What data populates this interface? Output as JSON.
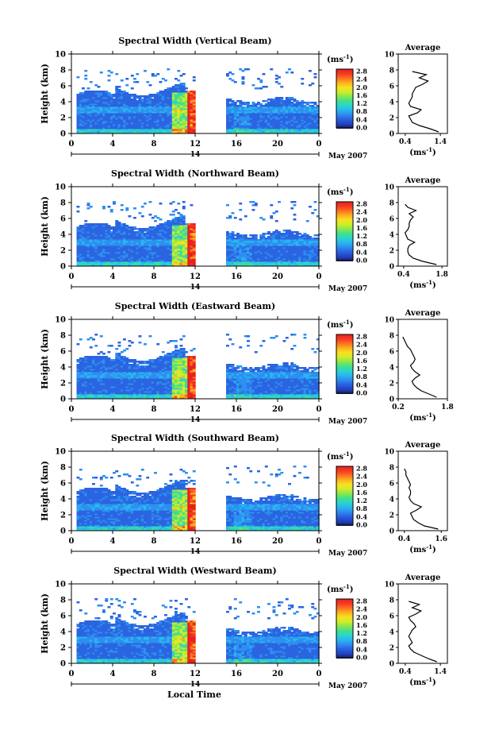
{
  "figure": {
    "xlabel_bottom": "Local Time",
    "date_label": "May 2007",
    "day_label": "14"
  },
  "colorbar": {
    "unit": "(ms",
    "unit_sup": "-1",
    "unit_close": ")",
    "ticks": [
      "2.8",
      "2.4",
      "2.0",
      "1.6",
      "1.2",
      "0.8",
      "0.4",
      "0.0"
    ],
    "colors": [
      "#1f2a8a",
      "#2244cc",
      "#2b64e0",
      "#2d8ff0",
      "#28b8f0",
      "#2ad6c8",
      "#44e08a",
      "#8ce84a",
      "#d0ec2a",
      "#f8e020",
      "#fcb020",
      "#fc7020",
      "#f43a22",
      "#e82020"
    ]
  },
  "chart_data": [
    {
      "type": "heatmap",
      "title": "Spectral Width (Vertical Beam)",
      "ylabel": "Height (km)",
      "xticks": [
        "0",
        "4",
        "8",
        "12",
        "16",
        "20",
        "0"
      ],
      "yticks": [
        "0",
        "2",
        "4",
        "6",
        "8",
        "10"
      ],
      "xlim": [
        0,
        24
      ],
      "ylim": [
        0,
        10
      ],
      "data_gap_hours": [
        12,
        14.8
      ],
      "profile": {
        "title": "Average",
        "xlabel": "(ms",
        "xlabel_sup": "-1",
        "xlabel_close": ")",
        "xticks": [
          "0.4",
          "1.4"
        ],
        "xlim": [
          0.2,
          1.6
        ],
        "ylim": [
          0,
          10
        ],
        "heights": [
          0.2,
          0.6,
          1.0,
          1.4,
          1.8,
          2.2,
          2.6,
          3.0,
          3.4,
          3.8,
          4.2,
          4.6,
          5.0,
          5.4,
          5.8,
          6.2,
          6.6,
          7.0,
          7.4,
          7.8
        ],
        "values": [
          1.35,
          1.1,
          0.8,
          0.6,
          0.55,
          0.5,
          0.75,
          0.85,
          0.55,
          0.5,
          0.55,
          0.6,
          0.6,
          0.65,
          0.7,
          0.9,
          1.05,
          0.8,
          1.0,
          0.6
        ]
      }
    },
    {
      "type": "heatmap",
      "title": "Spectral Width (Northward Beam)",
      "ylabel": "Height (km)",
      "xticks": [
        "0",
        "4",
        "8",
        "12",
        "16",
        "20",
        "0"
      ],
      "yticks": [
        "0",
        "2",
        "4",
        "6",
        "8",
        "10"
      ],
      "xlim": [
        0,
        24
      ],
      "ylim": [
        0,
        10
      ],
      "data_gap_hours": [
        12,
        14.8
      ],
      "profile": {
        "title": "Average",
        "xlabel": "(ms",
        "xlabel_sup": "-1",
        "xlabel_close": ")",
        "xticks": [
          "0.4",
          "1.8"
        ],
        "xlim": [
          0.2,
          2.0
        ],
        "ylim": [
          0,
          10
        ],
        "heights": [
          0.2,
          0.6,
          1.0,
          1.4,
          1.8,
          2.2,
          2.6,
          3.0,
          3.4,
          3.8,
          4.2,
          4.6,
          5.0,
          5.4,
          5.8,
          6.2,
          6.6,
          7.0,
          7.4,
          7.8
        ],
        "values": [
          1.6,
          1.1,
          0.75,
          0.6,
          0.55,
          0.55,
          0.6,
          0.8,
          0.55,
          0.5,
          0.45,
          0.55,
          0.6,
          0.6,
          0.65,
          0.75,
          0.6,
          0.85,
          0.55,
          0.45
        ]
      }
    },
    {
      "type": "heatmap",
      "title": "Spectral Width (Eastward Beam)",
      "ylabel": "Height (km)",
      "xticks": [
        "0",
        "4",
        "8",
        "12",
        "16",
        "20",
        "0"
      ],
      "yticks": [
        "0",
        "2",
        "4",
        "6",
        "8",
        "10"
      ],
      "xlim": [
        0,
        24
      ],
      "ylim": [
        0,
        10
      ],
      "data_gap_hours": [
        12,
        14.8
      ],
      "profile": {
        "title": "Average",
        "xlabel": "(ms",
        "xlabel_sup": "-1",
        "xlabel_close": ")",
        "xticks": [
          "0.2",
          "1.8"
        ],
        "xlim": [
          0.2,
          1.8
        ],
        "ylim": [
          0,
          10
        ],
        "heights": [
          0.2,
          0.6,
          1.0,
          1.4,
          1.8,
          2.2,
          2.6,
          3.0,
          3.4,
          3.8,
          4.2,
          4.6,
          5.0,
          5.4,
          5.8,
          6.2,
          6.6,
          7.0,
          7.4,
          7.8
        ],
        "values": [
          1.45,
          1.2,
          0.95,
          0.8,
          0.7,
          0.65,
          0.75,
          0.9,
          0.75,
          0.65,
          0.6,
          0.7,
          0.75,
          0.7,
          0.65,
          0.6,
          0.5,
          0.45,
          0.4,
          0.35
        ]
      }
    },
    {
      "type": "heatmap",
      "title": "Spectral Width (Southward Beam)",
      "ylabel": "Height (km)",
      "xticks": [
        "0",
        "4",
        "8",
        "12",
        "16",
        "20",
        "0"
      ],
      "yticks": [
        "0",
        "2",
        "4",
        "6",
        "8",
        "10"
      ],
      "xlim": [
        0,
        24
      ],
      "ylim": [
        0,
        10
      ],
      "data_gap_hours": [
        12,
        14.8
      ],
      "profile": {
        "title": "Average",
        "xlabel": "(ms",
        "xlabel_sup": "-1",
        "xlabel_close": ")",
        "xticks": [
          "0.4",
          "1.6"
        ],
        "xlim": [
          0.2,
          1.8
        ],
        "ylim": [
          0,
          10
        ],
        "heights": [
          0.2,
          0.6,
          1.0,
          1.4,
          1.8,
          2.2,
          2.6,
          3.0,
          3.4,
          3.8,
          4.2,
          4.6,
          5.0,
          5.4,
          5.8,
          6.2,
          6.6,
          7.0,
          7.4,
          7.8
        ],
        "values": [
          1.5,
          1.05,
          0.85,
          0.7,
          0.65,
          0.6,
          0.8,
          0.95,
          0.7,
          0.6,
          0.55,
          0.6,
          0.6,
          0.55,
          0.6,
          0.55,
          0.5,
          0.45,
          0.45,
          0.4
        ]
      }
    },
    {
      "type": "heatmap",
      "title": "Spectral Width (Westward Beam)",
      "ylabel": "Height (km)",
      "xticks": [
        "0",
        "4",
        "8",
        "12",
        "16",
        "20",
        "0"
      ],
      "yticks": [
        "0",
        "2",
        "4",
        "6",
        "8",
        "10"
      ],
      "xlim": [
        0,
        24
      ],
      "ylim": [
        0,
        10
      ],
      "data_gap_hours": [
        12,
        14.8
      ],
      "profile": {
        "title": "Average",
        "xlabel": "(ms",
        "xlabel_sup": "-1",
        "xlabel_close": ")",
        "xticks": [
          "0.4",
          "1.4"
        ],
        "xlim": [
          0.2,
          1.6
        ],
        "ylim": [
          0,
          10
        ],
        "heights": [
          0.2,
          0.6,
          1.0,
          1.4,
          1.8,
          2.2,
          2.6,
          3.0,
          3.4,
          3.8,
          4.2,
          4.6,
          5.0,
          5.4,
          5.8,
          6.2,
          6.6,
          7.0,
          7.4,
          7.8
        ],
        "values": [
          1.3,
          1.05,
          0.85,
          0.65,
          0.55,
          0.5,
          0.6,
          0.55,
          0.5,
          0.55,
          0.6,
          0.7,
          0.65,
          0.55,
          0.5,
          0.7,
          0.85,
          0.6,
          0.8,
          0.5
        ]
      }
    }
  ]
}
